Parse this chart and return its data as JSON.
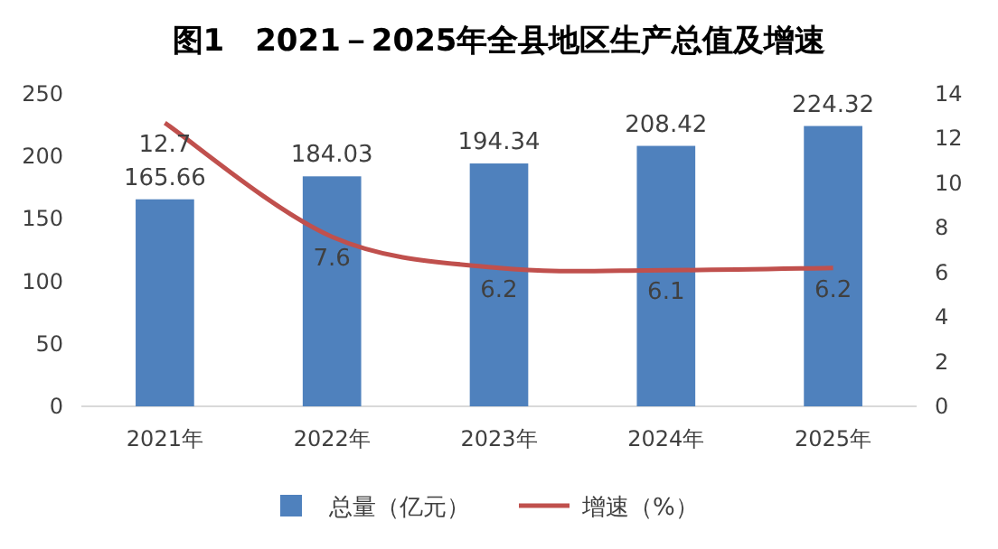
{
  "chart_data": {
    "type": "bar",
    "title": "图1　2021－2025年全县地区生产总值及增速",
    "categories": [
      "2021年",
      "2022年",
      "2023年",
      "2024年",
      "2025年"
    ],
    "series": [
      {
        "name": "总量（亿元）",
        "color": "#4f81bd",
        "values": [
          165.66,
          184.03,
          194.34,
          208.42,
          224.32
        ]
      },
      {
        "name": "增速（%）",
        "type": "line",
        "axis": "y2",
        "color": "#c0504d",
        "values": [
          12.7,
          7.6,
          6.2,
          6.1,
          6.2
        ]
      }
    ],
    "ylim": [
      0,
      250
    ],
    "yticks": [
      0,
      50,
      100,
      150,
      200,
      250
    ],
    "y2lim": [
      0,
      14
    ],
    "y2ticks": [
      0,
      2,
      4,
      6,
      8,
      10,
      12,
      14
    ],
    "data_labels": true,
    "legend": "bottom",
    "grid": false,
    "marker": "none",
    "line_style": "solid"
  }
}
